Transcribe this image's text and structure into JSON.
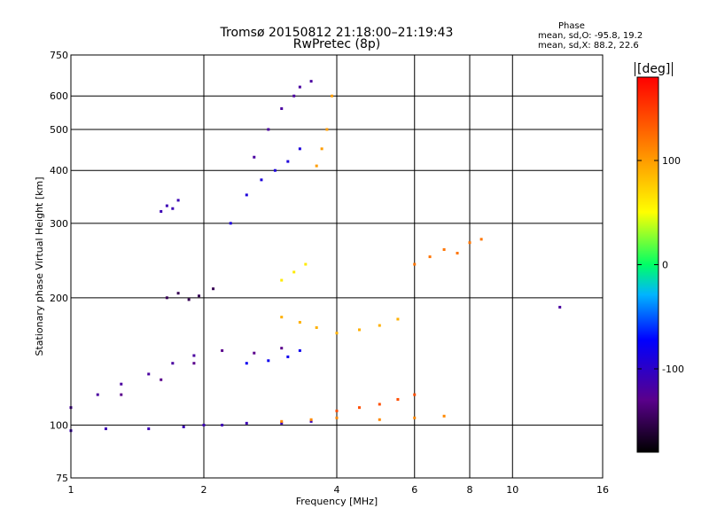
{
  "header": {
    "title_line1": "Tromsø 20150812 21:18:00–21:19:43",
    "title_line2": "RwPretec (8p)",
    "phase_info": {
      "heading": "Phase",
      "o_mode": "mean, sd,O:  -95.8, 19.2",
      "x_mode": "mean, sd,X:  88.2, 22.6"
    }
  },
  "chart_data": {
    "type": "scatter",
    "title": "Tromsø 20150812 21:18:00–21:19:43",
    "subtitle": "RwPretec (8p)",
    "xlabel": "Frequency [MHz]",
    "ylabel": "Stationary phase Virtual Height [km]",
    "x_scale": "log",
    "y_scale": "log",
    "xlim": [
      1,
      16
    ],
    "ylim": [
      75,
      750
    ],
    "x_ticks": [
      1,
      2,
      4,
      6,
      8,
      10,
      16
    ],
    "y_ticks": [
      75,
      100,
      200,
      300,
      400,
      500,
      600,
      750
    ],
    "grid": true,
    "colorbar": {
      "label": "[deg]",
      "range": [
        -180,
        180
      ],
      "ticks": [
        -100,
        0,
        100
      ],
      "colormap": "rainbow"
    },
    "series": [
      {
        "x": [
          1.0,
          1.2,
          1.5,
          1.8,
          2.0,
          2.2,
          2.5,
          3.0,
          3.5
        ],
        "y": [
          97,
          98,
          98,
          99,
          100,
          100,
          101,
          101,
          102
        ],
        "phase": -110
      },
      {
        "x": [
          1.0,
          1.15,
          1.3,
          1.5,
          1.7,
          1.9
        ],
        "y": [
          110,
          118,
          125,
          132,
          140,
          146
        ],
        "phase": -120
      },
      {
        "x": [
          1.3,
          1.6,
          1.9,
          2.2,
          2.6,
          3.0
        ],
        "y": [
          118,
          128,
          140,
          150,
          148,
          152
        ],
        "phase": -130
      },
      {
        "x": [
          1.65,
          1.75,
          1.85,
          1.95,
          2.1
        ],
        "y": [
          200,
          205,
          198,
          202,
          210
        ],
        "phase": -150
      },
      {
        "x": [
          1.6,
          1.65,
          1.7,
          1.75
        ],
        "y": [
          320,
          330,
          325,
          340
        ],
        "phase": -110
      },
      {
        "x": [
          2.3,
          2.5,
          2.7,
          2.9,
          3.1,
          3.3
        ],
        "y": [
          300,
          350,
          380,
          400,
          420,
          450
        ],
        "phase": -90
      },
      {
        "x": [
          2.6,
          2.8,
          3.0,
          3.2,
          3.3,
          3.5
        ],
        "y": [
          430,
          500,
          560,
          600,
          630,
          650
        ],
        "phase": -120
      },
      {
        "x": [
          3.6,
          3.7,
          3.8,
          3.9
        ],
        "y": [
          410,
          450,
          500,
          600
        ],
        "phase": 100
      },
      {
        "x": [
          3.0,
          3.3,
          3.6,
          4.0,
          4.5,
          5.0,
          5.5
        ],
        "y": [
          180,
          175,
          170,
          165,
          168,
          172,
          178
        ],
        "phase": 90
      },
      {
        "x": [
          3.0,
          3.5,
          4.0,
          5.0,
          6.0,
          7.0
        ],
        "y": [
          102,
          103,
          104,
          103,
          104,
          105
        ],
        "phase": 110
      },
      {
        "x": [
          2.5,
          2.8,
          3.1,
          3.3
        ],
        "y": [
          140,
          142,
          145,
          150
        ],
        "phase": -80
      },
      {
        "x": [
          3.0,
          3.2,
          3.4
        ],
        "y": [
          220,
          230,
          240
        ],
        "phase": 60
      },
      {
        "x": [
          6.0,
          6.5,
          7.0,
          7.5,
          8.0,
          8.5
        ],
        "y": [
          240,
          250,
          260,
          255,
          270,
          275
        ],
        "phase": 120
      },
      {
        "x": [
          4.0,
          4.5,
          5.0,
          5.5,
          6.0
        ],
        "y": [
          108,
          110,
          112,
          115,
          118
        ],
        "phase": 140
      },
      {
        "x": [
          12.8
        ],
        "y": [
          190
        ],
        "phase": -120
      }
    ]
  }
}
